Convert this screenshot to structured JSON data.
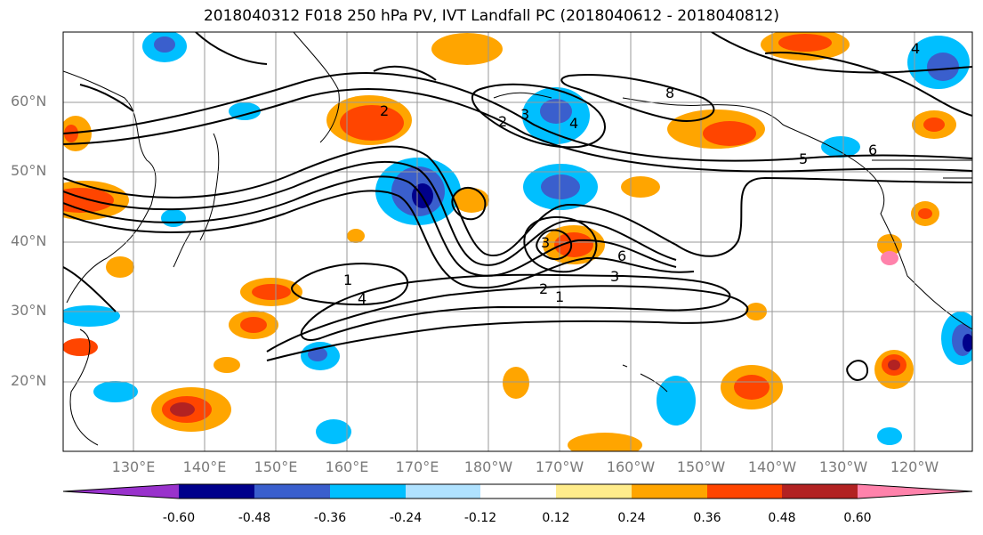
{
  "title": "2018040312 F018 250 hPa PV, IVT Landfall PC (2018040612 - 2018040812)",
  "map": {
    "lat_labels": [
      "60°N",
      "50°N",
      "40°N",
      "30°N",
      "20°N"
    ],
    "lon_labels": [
      "130°E",
      "140°E",
      "150°E",
      "160°E",
      "170°E",
      "180°W",
      "170°W",
      "160°W",
      "150°W",
      "140°W",
      "130°W",
      "120°W"
    ],
    "extent": {
      "lon_west": 120,
      "lon_east": 248,
      "lat_south": 10,
      "lat_north": 70
    },
    "contour_labels": [
      "1",
      "2",
      "3",
      "4",
      "5",
      "6",
      "8",
      "2",
      "3",
      "4",
      "6",
      "1",
      "2",
      "3",
      "4"
    ]
  },
  "colorbar": {
    "tick_labels": [
      "-0.60",
      "-0.48",
      "-0.36",
      "-0.24",
      "-0.12",
      "0.12",
      "0.24",
      "0.36",
      "0.48",
      "0.60"
    ],
    "colors": [
      "#9932cc",
      "#00008b",
      "#3a5fcd",
      "#00bfff",
      "#b0e2ff",
      "#ffffff",
      "#ffec8b",
      "#ffa500",
      "#ff4500",
      "#b22222",
      "#ff82ab"
    ]
  }
}
